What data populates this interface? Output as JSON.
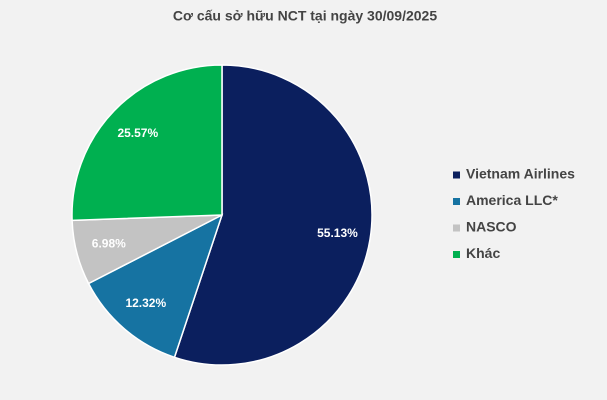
{
  "chart_data": {
    "type": "pie",
    "title": "Cơ cấu sở hữu NCT tại ngày 30/09/2025",
    "categories": [
      "Vietnam Airlines",
      "America LLC*",
      "NASCO",
      "Khác"
    ],
    "values": [
      55.13,
      12.32,
      6.98,
      25.57
    ],
    "value_labels": [
      "55.13%",
      "12.32%",
      "6.98%",
      "25.57%"
    ],
    "colors": [
      "#0b1f5e",
      "#1673a2",
      "#c3c3c3",
      "#00b050"
    ],
    "legend": "right"
  }
}
